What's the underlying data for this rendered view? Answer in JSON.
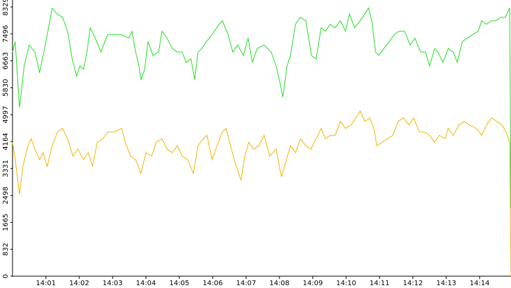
{
  "chart_data": {
    "type": "line",
    "xlim": [
      0,
      14.94
    ],
    "xticks": [
      {
        "value": 1,
        "label": "14:01"
      },
      {
        "value": 2,
        "label": "14:02"
      },
      {
        "value": 3,
        "label": "14:03"
      },
      {
        "value": 4,
        "label": "14:04"
      },
      {
        "value": 5,
        "label": "14:05"
      },
      {
        "value": 6,
        "label": "14:06"
      },
      {
        "value": 7,
        "label": "14:07"
      },
      {
        "value": 8,
        "label": "14:08"
      },
      {
        "value": 9,
        "label": "14:09"
      },
      {
        "value": 10,
        "label": "14:10"
      },
      {
        "value": 11,
        "label": "14:11"
      },
      {
        "value": 12,
        "label": "14:12"
      },
      {
        "value": 13,
        "label": "14:13"
      },
      {
        "value": 14,
        "label": "14:14"
      }
    ],
    "ylim": [
      0,
      8329
    ],
    "yticks": [
      0,
      832,
      1665,
      2498,
      3331,
      4164,
      4997,
      5830,
      6663,
      7496,
      8329
    ],
    "series": [
      {
        "color": "#22dd22",
        "x": [
          0,
          0.08,
          0.21,
          0.35,
          0.5,
          0.67,
          0.81,
          0.98,
          1.19,
          1.33,
          1.5,
          1.65,
          1.79,
          1.92,
          2.02,
          2.13,
          2.23,
          2.33,
          2.48,
          2.65,
          2.85,
          3.06,
          3.27,
          3.48,
          3.58,
          3.69,
          3.79,
          3.85,
          3.96,
          4.06,
          4.21,
          4.38,
          4.48,
          4.63,
          4.79,
          4.94,
          5.08,
          5.21,
          5.35,
          5.46,
          5.56,
          5.67,
          5.81,
          5.98,
          6.19,
          6.29,
          6.46,
          6.6,
          6.75,
          6.92,
          7.06,
          7.19,
          7.33,
          7.54,
          7.75,
          7.9,
          8.02,
          8.1,
          8.23,
          8.33,
          8.48,
          8.63,
          8.79,
          8.96,
          9.1,
          9.25,
          9.38,
          9.52,
          9.67,
          9.83,
          9.98,
          10.1,
          10.25,
          10.42,
          10.56,
          10.67,
          10.77,
          10.88,
          10.98,
          11.13,
          11.29,
          11.44,
          11.58,
          11.75,
          11.92,
          12.06,
          12.23,
          12.38,
          12.5,
          12.65,
          12.75,
          12.9,
          13.06,
          13.21,
          13.33,
          13.48,
          13.63,
          13.79,
          13.96,
          14.06,
          14.21,
          14.35,
          14.48,
          14.63,
          14.77,
          14.9,
          14.94
        ],
        "values": [
          6935,
          7257,
          5217,
          6505,
          7150,
          6935,
          6291,
          7150,
          8287,
          8116,
          8008,
          7579,
          6720,
          6183,
          6505,
          6398,
          6935,
          7686,
          7364,
          6935,
          7472,
          7472,
          7472,
          7364,
          7579,
          6935,
          6505,
          6076,
          6398,
          7257,
          6827,
          6935,
          7579,
          7364,
          7042,
          6935,
          6935,
          6613,
          6720,
          6076,
          6935,
          7042,
          7257,
          7472,
          7794,
          7901,
          7472,
          6935,
          7150,
          6827,
          7364,
          6613,
          7042,
          7150,
          6935,
          6505,
          5969,
          5539,
          6505,
          6827,
          7794,
          8008,
          7901,
          6827,
          6720,
          7686,
          7579,
          7794,
          7686,
          7901,
          7579,
          8116,
          7686,
          7901,
          8116,
          8300,
          7901,
          6935,
          6827,
          7042,
          7257,
          7472,
          7579,
          7579,
          7150,
          7364,
          6935,
          6935,
          6505,
          7042,
          6935,
          6613,
          7042,
          6935,
          6613,
          7257,
          7364,
          7472,
          7579,
          7901,
          7794,
          7901,
          7901,
          8008,
          8008,
          8300,
          2104
        ]
      },
      {
        "color": "#f0b400",
        "x": [
          0,
          0.08,
          0.21,
          0.31,
          0.46,
          0.56,
          0.67,
          0.81,
          0.92,
          1.04,
          1.19,
          1.35,
          1.5,
          1.65,
          1.81,
          1.96,
          2.13,
          2.27,
          2.4,
          2.54,
          2.71,
          2.85,
          3.06,
          3.27,
          3.38,
          3.54,
          3.69,
          3.85,
          4.0,
          4.17,
          4.31,
          4.48,
          4.63,
          4.79,
          4.94,
          5.08,
          5.25,
          5.42,
          5.56,
          5.71,
          5.83,
          5.98,
          6.13,
          6.29,
          6.4,
          6.56,
          6.71,
          6.85,
          6.96,
          7.08,
          7.23,
          7.38,
          7.54,
          7.71,
          7.9,
          8.06,
          8.21,
          8.33,
          8.48,
          8.63,
          8.79,
          8.94,
          9.1,
          9.25,
          9.38,
          9.52,
          9.67,
          9.83,
          9.98,
          10.15,
          10.29,
          10.42,
          10.56,
          10.71,
          10.83,
          10.92,
          11.08,
          11.23,
          11.4,
          11.56,
          11.71,
          11.88,
          12.02,
          12.19,
          12.33,
          12.5,
          12.65,
          12.79,
          12.96,
          13.06,
          13.21,
          13.38,
          13.54,
          13.69,
          13.9,
          14.06,
          14.21,
          14.35,
          14.52,
          14.67,
          14.79,
          14.9,
          14.94
        ],
        "values": [
          4144,
          3607,
          2533,
          3392,
          4036,
          4251,
          3929,
          3607,
          3822,
          3392,
          4036,
          4466,
          4573,
          4251,
          3714,
          3929,
          3607,
          3822,
          3392,
          4144,
          4251,
          4466,
          4466,
          4573,
          4144,
          3714,
          3607,
          3178,
          3822,
          3714,
          4144,
          4251,
          3929,
          3822,
          4036,
          3714,
          3607,
          3178,
          4036,
          4251,
          4358,
          3607,
          4036,
          4466,
          4573,
          3929,
          3392,
          2963,
          3714,
          4144,
          3929,
          4036,
          4358,
          3714,
          3929,
          3070,
          3607,
          4036,
          3822,
          4251,
          4036,
          3929,
          4251,
          4573,
          4251,
          4358,
          4358,
          4788,
          4573,
          4680,
          4895,
          5110,
          4788,
          4895,
          4573,
          4036,
          4144,
          4251,
          4358,
          4788,
          4895,
          4680,
          4895,
          4466,
          4466,
          4358,
          4144,
          4358,
          4251,
          4573,
          4358,
          4680,
          4788,
          4680,
          4573,
          4358,
          4680,
          4895,
          4788,
          4680,
          4466,
          4144,
          0
        ]
      }
    ]
  }
}
